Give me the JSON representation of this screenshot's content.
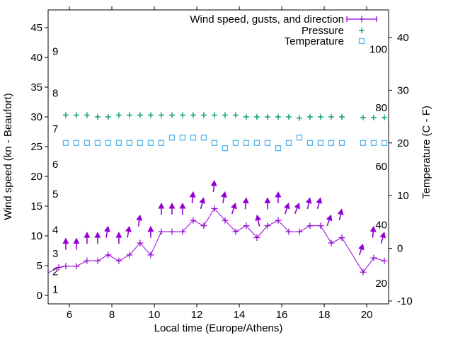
{
  "chart_data": {
    "type": "line",
    "title": "",
    "background": "#ffffff",
    "colors": {
      "wind": "#9400d3",
      "pressure": "#009973",
      "temperature": "#56b4e9",
      "axis": "#000000"
    },
    "x_axis": {
      "label": "Local time (Europe/Athens)",
      "ticks": [
        6,
        8,
        10,
        12,
        14,
        16,
        18,
        20
      ],
      "range": [
        5.0,
        21.03
      ]
    },
    "y_axis_left": {
      "label": "Wind speed (kn - Beaufort)",
      "ticks": [
        0,
        5,
        10,
        15,
        20,
        25,
        30,
        35,
        40,
        45
      ],
      "range": [
        -1.43,
        47.98
      ],
      "beaufort_labels": [
        {
          "beaufort": "1",
          "kn": 1
        },
        {
          "beaufort": "2",
          "kn": 4
        },
        {
          "beaufort": "3",
          "kn": 7
        },
        {
          "beaufort": "4",
          "kn": 11
        },
        {
          "beaufort": "5",
          "kn": 17
        },
        {
          "beaufort": "6",
          "kn": 22
        },
        {
          "beaufort": "7",
          "kn": 28
        },
        {
          "beaufort": "8",
          "kn": 34
        },
        {
          "beaufort": "9",
          "kn": 41
        }
      ]
    },
    "y_axis_right": {
      "label": "Temperature (C - F)",
      "ticks_celsius": [
        -10,
        0,
        10,
        20,
        30,
        40
      ],
      "range_celsius": [
        -10.54,
        45.24
      ],
      "fahrenheit_labels": [
        20,
        40,
        60,
        80,
        100
      ]
    },
    "legend": {
      "entries": [
        {
          "label": "Wind speed, gusts, and direction",
          "sample": "errorbar",
          "color_key": "wind"
        },
        {
          "label": "Pressure",
          "sample": "plus",
          "color_key": "pressure"
        },
        {
          "label": "Temperature",
          "sample": "square",
          "color_key": "temperature"
        }
      ]
    },
    "series": [
      {
        "name": "Wind speed",
        "axis": "left",
        "style": "linespoints",
        "marker": "plus",
        "color_key": "wind",
        "first_point_line_only": true,
        "x": [
          5.0,
          5.5,
          5.83,
          6.33,
          6.83,
          7.33,
          7.83,
          8.33,
          8.83,
          9.33,
          9.83,
          10.33,
          10.83,
          11.33,
          11.83,
          12.33,
          12.83,
          13.33,
          13.83,
          14.33,
          14.83,
          15.33,
          15.83,
          16.33,
          16.83,
          17.33,
          17.83,
          18.33,
          18.83,
          19.83,
          20.33,
          20.83
        ],
        "y_kn": [
          3.8,
          4.7,
          4.9,
          4.9,
          5.8,
          5.8,
          6.8,
          5.8,
          6.8,
          8.8,
          6.8,
          10.7,
          10.7,
          10.7,
          12.6,
          11.7,
          14.6,
          12.6,
          10.7,
          11.7,
          9.7,
          11.7,
          12.6,
          10.7,
          10.7,
          11.7,
          11.7,
          8.8,
          9.7,
          3.9,
          6.3,
          5.8
        ]
      },
      {
        "name": "Wind gusts and direction (arrow tips at gust speed, arrows point with wind direction)",
        "axis": "left",
        "style": "arrows",
        "color_key": "wind",
        "x": [
          5.83,
          6.33,
          6.83,
          7.33,
          7.83,
          8.33,
          8.83,
          9.33,
          9.83,
          10.33,
          10.83,
          11.33,
          11.83,
          12.33,
          12.83,
          13.33,
          13.83,
          14.33,
          14.83,
          15.33,
          15.83,
          16.33,
          16.83,
          17.33,
          17.83,
          18.33,
          18.83,
          19.83,
          20.33,
          20.83
        ],
        "y_kn": [
          9.7,
          9.7,
          10.7,
          10.7,
          11.7,
          10.7,
          11.7,
          13.6,
          11.7,
          15.6,
          15.6,
          15.6,
          17.5,
          16.5,
          19.4,
          17.5,
          15.6,
          16.5,
          13.6,
          16.5,
          17.5,
          15.6,
          15.6,
          16.5,
          16.5,
          13.6,
          14.6,
          8.7,
          11.7,
          10.7
        ],
        "tilt_deg": [
          0,
          0,
          0,
          0,
          10,
          0,
          10,
          8,
          0,
          0,
          0,
          0,
          5,
          15,
          5,
          10,
          18,
          5,
          -12,
          0,
          0,
          18,
          22,
          12,
          15,
          20,
          12,
          18,
          5,
          15
        ]
      },
      {
        "name": "Pressure",
        "axis": "left-unlabeled-scale",
        "style": "points",
        "marker": "plus",
        "color_key": "pressure",
        "note": "pressure scale not labeled; values are plotted positions in left-axis units",
        "x": [
          5.83,
          6.33,
          6.83,
          7.33,
          7.83,
          8.33,
          8.83,
          9.33,
          9.83,
          10.33,
          10.83,
          11.33,
          11.83,
          12.33,
          12.83,
          13.33,
          13.83,
          14.33,
          14.83,
          15.33,
          15.83,
          16.33,
          16.83,
          17.33,
          17.83,
          18.33,
          18.83,
          19.83,
          20.33,
          20.83
        ],
        "y_kn": [
          30.3,
          30.3,
          30.3,
          30.0,
          30.0,
          30.3,
          30.3,
          30.3,
          30.3,
          30.3,
          30.3,
          30.3,
          30.3,
          30.3,
          30.3,
          30.3,
          30.3,
          30.0,
          30.0,
          30.0,
          30.0,
          30.0,
          29.8,
          30.0,
          30.0,
          30.0,
          30.0,
          29.9,
          29.9,
          29.9
        ]
      },
      {
        "name": "Temperature",
        "axis": "right",
        "style": "points",
        "marker": "open-square",
        "color_key": "temperature",
        "x": [
          5.83,
          6.33,
          6.83,
          7.33,
          7.83,
          8.33,
          8.83,
          9.33,
          9.83,
          10.33,
          10.83,
          11.33,
          11.83,
          12.33,
          12.83,
          13.33,
          13.83,
          14.33,
          14.83,
          15.33,
          15.83,
          16.33,
          16.83,
          17.33,
          17.83,
          18.33,
          18.83,
          19.83,
          20.33,
          20.83
        ],
        "y_celsius": [
          20,
          20,
          20,
          20,
          20,
          20,
          20,
          20,
          20,
          20,
          21,
          21,
          21,
          21,
          20,
          19,
          20,
          20,
          20,
          20,
          19,
          20,
          21,
          20,
          20,
          20,
          20,
          20,
          20,
          20
        ]
      }
    ]
  }
}
